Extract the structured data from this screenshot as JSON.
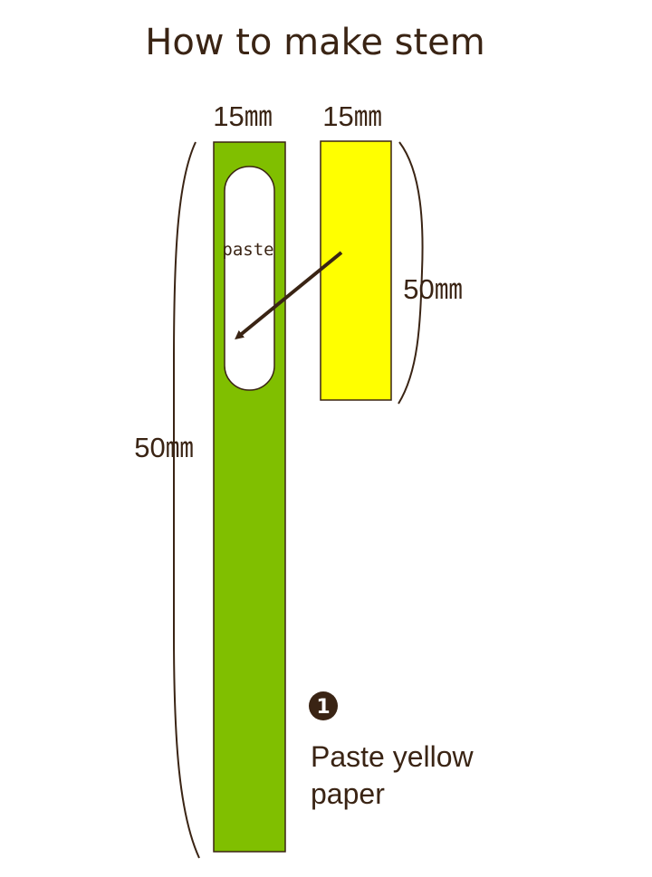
{
  "title": "How to make stem",
  "green_strip": {
    "width_label": "15㎜",
    "length_label": "50㎜",
    "paste_label": "paste",
    "color": "#80bf00"
  },
  "yellow_strip": {
    "width_label": "15㎜",
    "length_label": "50㎜",
    "color": "#ffff00"
  },
  "outline_color": "#3a2414",
  "step": {
    "number": "1",
    "line1": "Paste yellow",
    "line2": "paper"
  }
}
